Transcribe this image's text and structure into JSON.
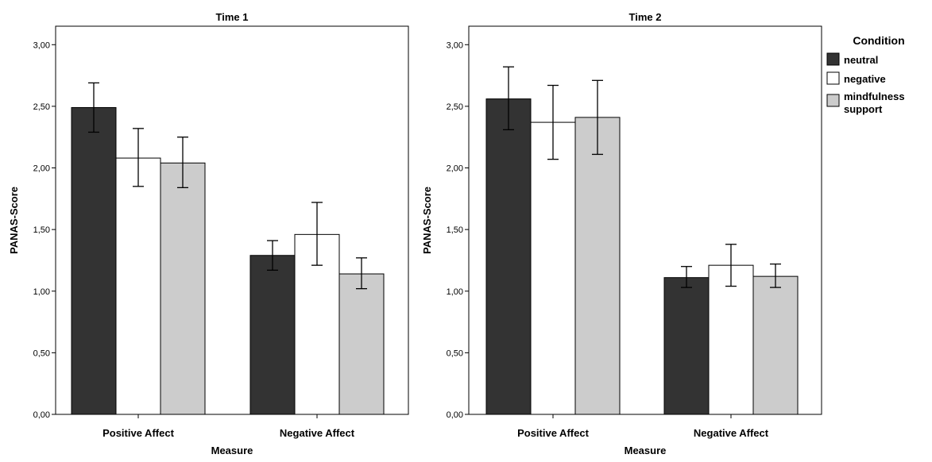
{
  "legend": {
    "title": "Condition",
    "items": [
      {
        "label": "neutral",
        "color": "#333333"
      },
      {
        "label": "negative",
        "color": "#ffffff"
      },
      {
        "label_lines": [
          "mindfulness",
          "support"
        ],
        "color": "#cccccc"
      }
    ]
  },
  "chart_data": [
    {
      "type": "bar",
      "title": "Time 1",
      "xlabel": "Measure",
      "ylabel": "PANAS-Score",
      "ylim": [
        0,
        3.15
      ],
      "yticks": [
        "0,00",
        "0,50",
        "1,00",
        "1,50",
        "2,00",
        "2,50",
        "3,00"
      ],
      "categories": [
        "Positive Affect",
        "Negative Affect"
      ],
      "series": [
        {
          "name": "neutral",
          "color": "#333333",
          "values": [
            2.49,
            1.29
          ],
          "error_low": [
            2.29,
            1.17
          ],
          "error_high": [
            2.69,
            1.41
          ]
        },
        {
          "name": "negative",
          "color": "#ffffff",
          "values": [
            2.08,
            1.46
          ],
          "error_low": [
            1.85,
            1.21
          ],
          "error_high": [
            2.32,
            1.72
          ]
        },
        {
          "name": "mindfulness support",
          "color": "#cccccc",
          "values": [
            2.04,
            1.14
          ],
          "error_low": [
            1.84,
            1.02
          ],
          "error_high": [
            2.25,
            1.27
          ]
        }
      ]
    },
    {
      "type": "bar",
      "title": "Time 2",
      "xlabel": "Measure",
      "ylabel": "PANAS-Score",
      "ylim": [
        0,
        3.15
      ],
      "yticks": [
        "0,00",
        "0,50",
        "1,00",
        "1,50",
        "2,00",
        "2,50",
        "3,00"
      ],
      "categories": [
        "Positive Affect",
        "Negative Affect"
      ],
      "series": [
        {
          "name": "neutral",
          "color": "#333333",
          "values": [
            2.56,
            1.11
          ],
          "error_low": [
            2.31,
            1.03
          ],
          "error_high": [
            2.82,
            1.2
          ]
        },
        {
          "name": "negative",
          "color": "#ffffff",
          "values": [
            2.37,
            1.21
          ],
          "error_low": [
            2.07,
            1.04
          ],
          "error_high": [
            2.67,
            1.38
          ]
        },
        {
          "name": "mindfulness support",
          "color": "#cccccc",
          "values": [
            2.41,
            1.12
          ],
          "error_low": [
            2.11,
            1.03
          ],
          "error_high": [
            2.71,
            1.22
          ]
        }
      ]
    }
  ]
}
